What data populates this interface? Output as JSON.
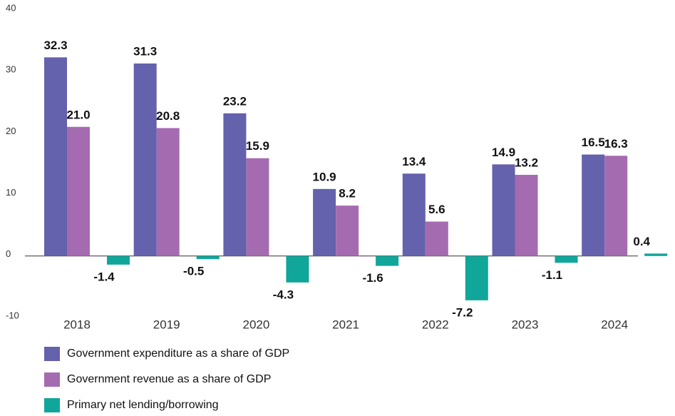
{
  "chart_data": {
    "type": "bar",
    "categories": [
      "2018",
      "2019",
      "2020",
      "2021",
      "2022",
      "2023",
      "2024"
    ],
    "series": [
      {
        "name": "Government expenditure as a share of GDP",
        "color": "#6461ad",
        "values": [
          32.3,
          31.3,
          23.2,
          10.9,
          13.4,
          14.9,
          16.5
        ],
        "value_labels": [
          "32.3",
          "31.3",
          "23.2",
          "10.9",
          "13.4",
          "14.9",
          "16.5"
        ]
      },
      {
        "name": "Government revenue as a share of GDP",
        "color": "#a56bb0",
        "values": [
          21.0,
          20.8,
          15.9,
          8.2,
          5.6,
          13.2,
          16.3
        ],
        "value_labels": [
          "21.0",
          "20.8",
          "15.9",
          "8.2",
          "5.6",
          "13.2",
          "16.3"
        ]
      },
      {
        "name": "Primary net lending/borrowing",
        "color": "#10a69a",
        "values": [
          -1.4,
          -0.5,
          -4.3,
          -1.6,
          -7.2,
          -1.1,
          0.4
        ],
        "value_labels": [
          "-1.4",
          "-0.5",
          "-4.3",
          "-1.6",
          "-7.2",
          "-1.1",
          "0.4"
        ]
      }
    ],
    "ylim": [
      -10,
      40
    ],
    "yticks": [
      -10,
      0,
      10,
      20,
      30,
      40
    ],
    "grid": false
  }
}
